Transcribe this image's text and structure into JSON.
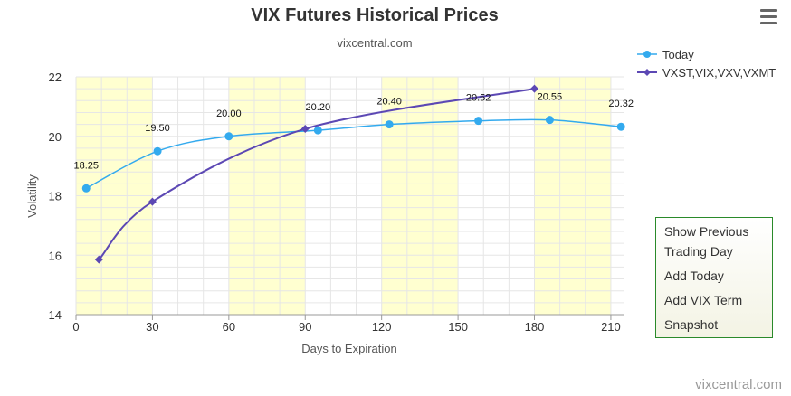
{
  "header": {
    "title": "VIX Futures Historical Prices",
    "subtitle": "vixcentral.com"
  },
  "menu": {
    "icon": "hamburger-menu-icon"
  },
  "legend": [
    {
      "label": "Today",
      "color": "#33aaee",
      "marker": "circle"
    },
    {
      "label": "VXST,VIX,VXV,VXMT",
      "color": "#5c48b4",
      "marker": "diamond"
    }
  ],
  "actions": {
    "show_previous": "Show Previous Trading Day",
    "add_today": "Add Today",
    "add_vix_term": "Add VIX Term",
    "snapshot": "Snapshot"
  },
  "credit": "vixcentral.com",
  "colors": {
    "today": "#33aaee",
    "indices": "#5c48b4",
    "band": "#ffffd0",
    "grid": "#e6e6e6",
    "action_border": "#2a8a2a"
  },
  "chart_data": {
    "type": "line",
    "title": "VIX Futures Historical Prices",
    "subtitle": "vixcentral.com",
    "xlabel": "Days to Expiration",
    "ylabel": "Volatility",
    "xlim": [
      0,
      215
    ],
    "ylim": [
      14,
      22
    ],
    "xticks": [
      0,
      30,
      60,
      90,
      120,
      150,
      180,
      210
    ],
    "yticks": [
      14,
      16,
      18,
      20,
      22
    ],
    "shaded_x_ranges": [
      [
        0,
        30
      ],
      [
        60,
        90
      ],
      [
        120,
        150
      ],
      [
        180,
        210
      ]
    ],
    "grid": true,
    "legend_position": "top-right",
    "series": [
      {
        "name": "Today",
        "x": [
          4,
          32,
          60,
          95,
          123,
          158,
          186,
          214
        ],
        "y": [
          18.25,
          19.5,
          20.0,
          20.2,
          20.4,
          20.52,
          20.55,
          20.32
        ],
        "labels": [
          "18.25",
          "19.50",
          "20.00",
          "20.20",
          "20.40",
          "20.52",
          "20.55",
          "20.32"
        ]
      },
      {
        "name": "VXST,VIX,VXV,VXMT",
        "x": [
          9,
          30,
          90,
          180
        ],
        "y": [
          15.85,
          17.8,
          20.25,
          21.6
        ]
      }
    ]
  }
}
